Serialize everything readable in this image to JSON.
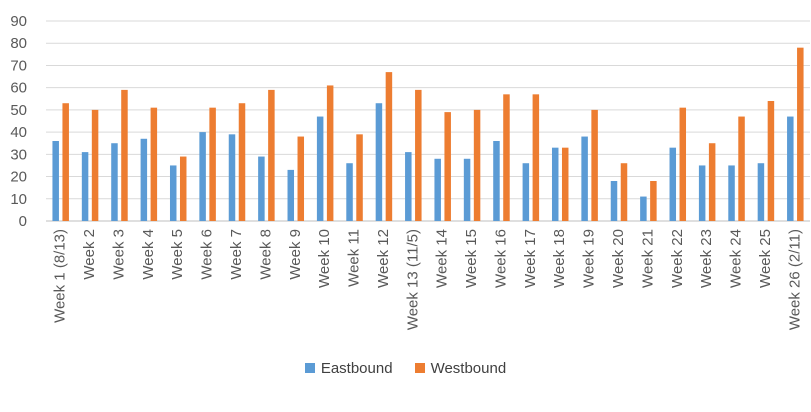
{
  "chart_data": {
    "type": "bar",
    "title": "",
    "xlabel": "",
    "ylabel": "",
    "ylim": [
      0,
      90
    ],
    "yticks": [
      0,
      10,
      20,
      30,
      40,
      50,
      60,
      70,
      80,
      90
    ],
    "grid": true,
    "legend_position": "bottom",
    "categories": [
      "Week 1 (8/13)",
      "Week 2",
      "Week 3",
      "Week 4",
      "Week 5",
      "Week 6",
      "Week 7",
      "Week 8",
      "Week 9",
      "Week 10",
      "Week 11",
      "Week 12",
      "Week 13 (11/5)",
      "Week 14",
      "Week 15",
      "Week 16",
      "Week 17",
      "Week 18",
      "Week 19",
      "Week 20",
      "Week 21",
      "Week 22",
      "Week 23",
      "Week 24",
      "Week 25",
      "Week 26 (2/11)"
    ],
    "series": [
      {
        "name": "Eastbound",
        "color": "#5B9BD5",
        "values": [
          36,
          31,
          35,
          37,
          25,
          40,
          39,
          29,
          23,
          47,
          26,
          53,
          31,
          28,
          28,
          36,
          26,
          33,
          38,
          18,
          11,
          33,
          25,
          25,
          26,
          47
        ]
      },
      {
        "name": "Westbound",
        "color": "#ED7D31",
        "values": [
          53,
          50,
          59,
          51,
          29,
          51,
          53,
          59,
          38,
          61,
          39,
          67,
          59,
          49,
          50,
          57,
          57,
          33,
          50,
          26,
          18,
          51,
          35,
          47,
          54,
          78
        ]
      }
    ]
  }
}
